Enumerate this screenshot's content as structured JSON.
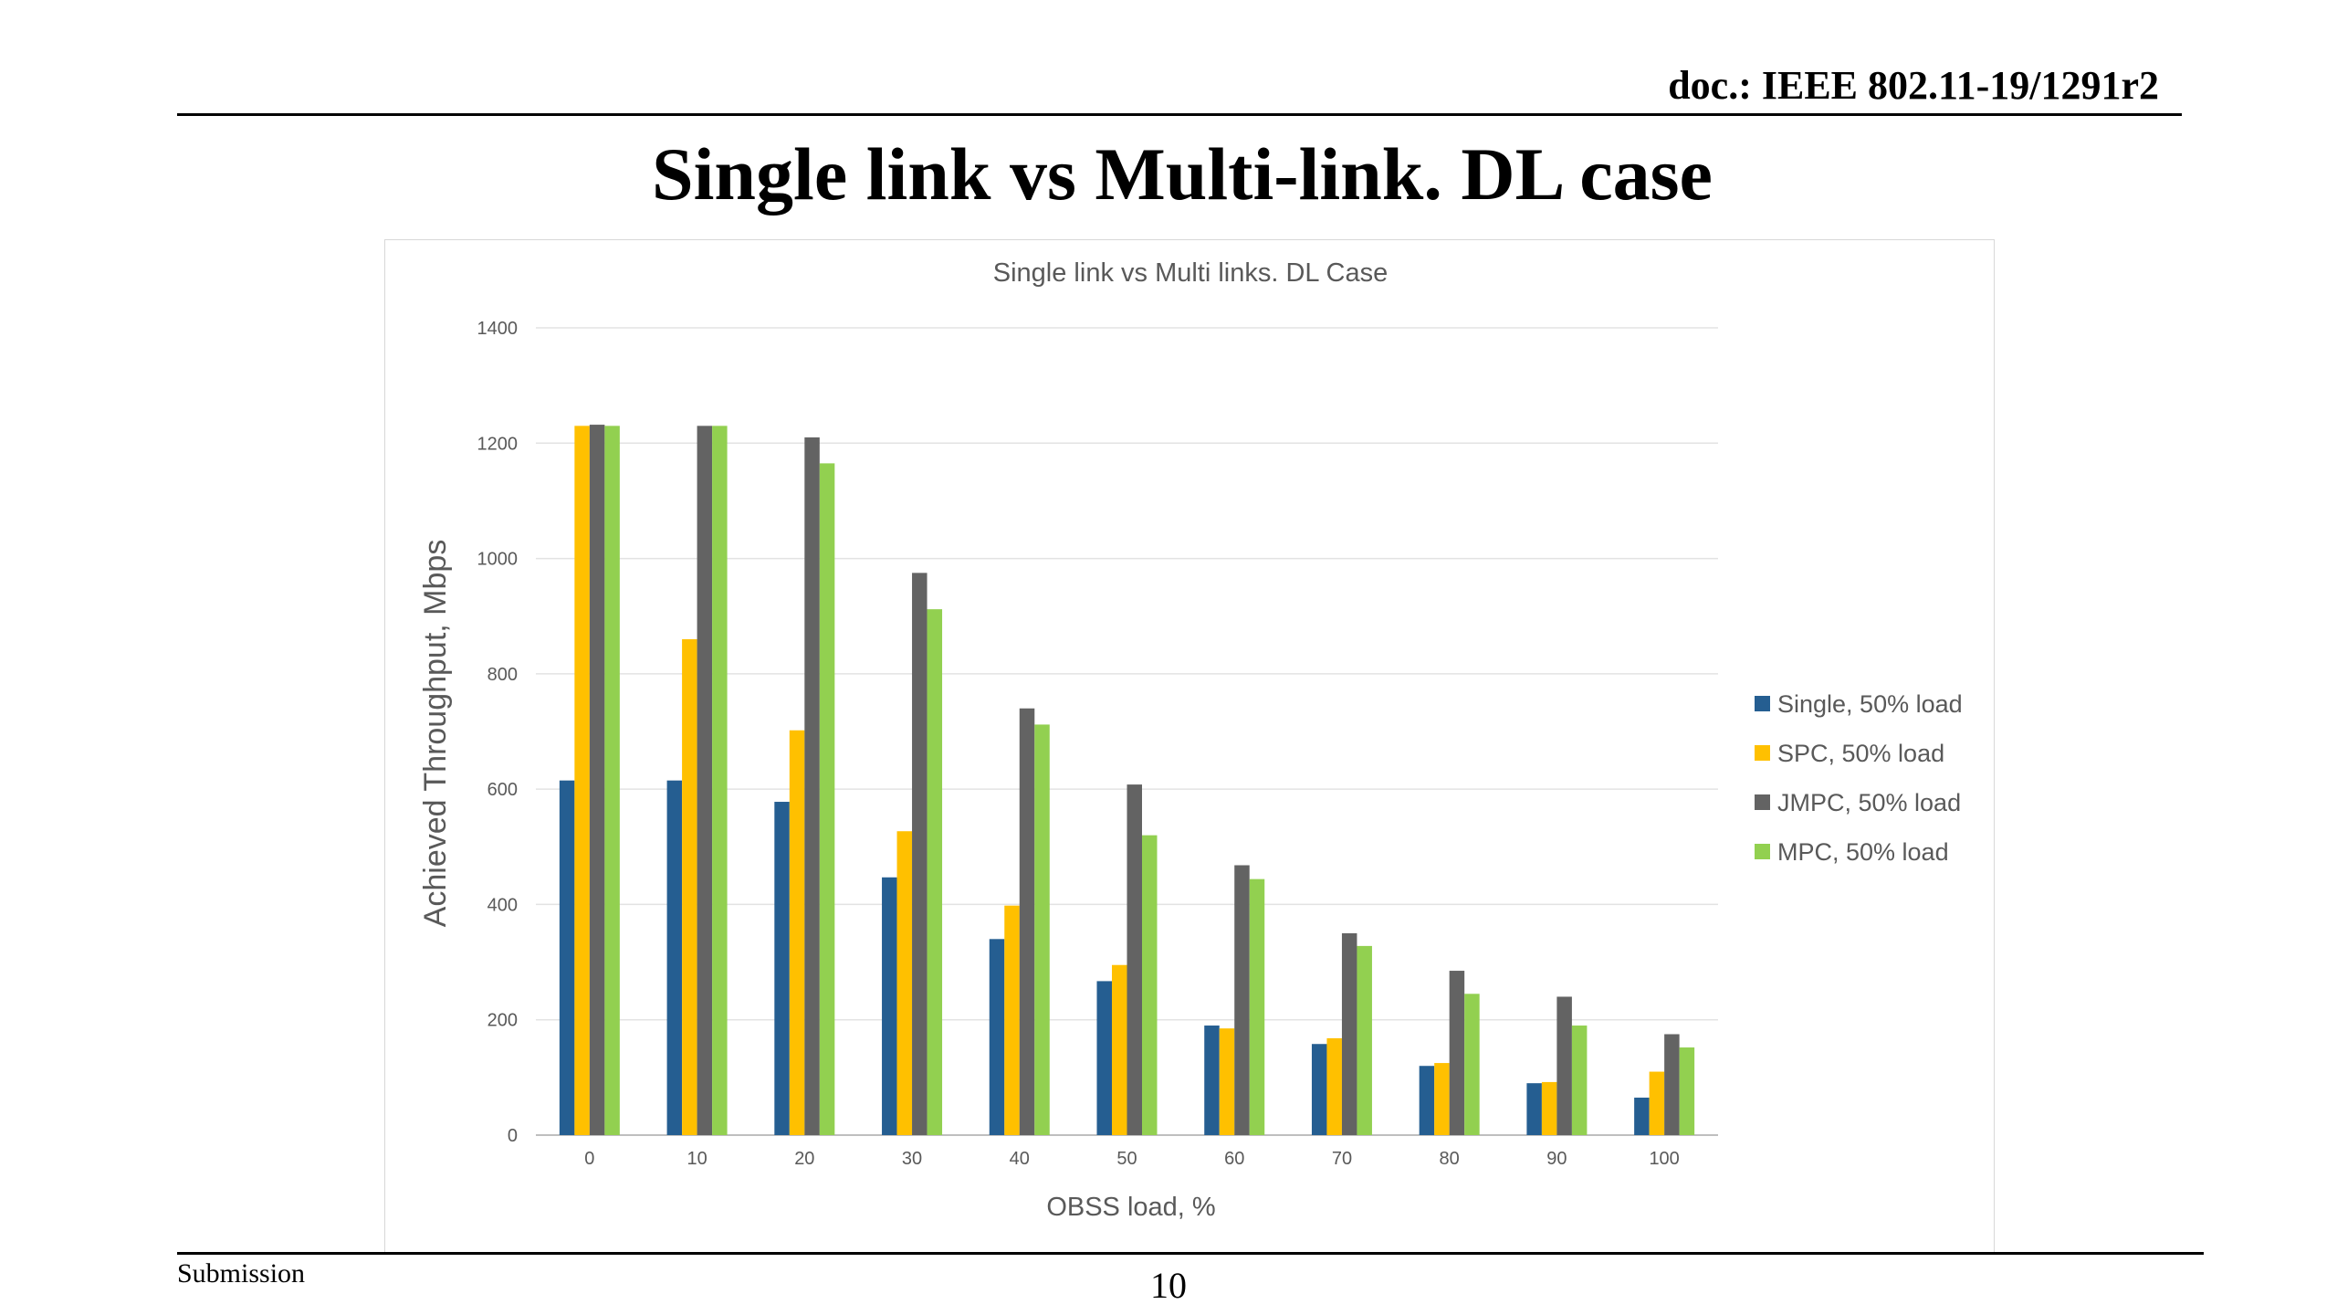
{
  "header": {
    "doc_ref": "doc.: IEEE 802.11-19/1291r2"
  },
  "slide": {
    "title": "Single link vs Multi-link. DL case"
  },
  "footer": {
    "left_label": "Submission",
    "page_number": "10"
  },
  "chart_data": {
    "type": "bar",
    "title": "Single link vs Multi links. DL Case",
    "xlabel": "OBSS load, %",
    "ylabel": "Achieved Throughput, Mbps",
    "ylim": [
      0,
      1400
    ],
    "yticks": [
      0,
      200,
      400,
      600,
      800,
      1000,
      1200,
      1400
    ],
    "categories": [
      "0",
      "10",
      "20",
      "30",
      "40",
      "50",
      "60",
      "70",
      "80",
      "90",
      "100"
    ],
    "grid": true,
    "legend_position": "right",
    "series": [
      {
        "name": "Single, 50% load",
        "color": "#255e91",
        "values": [
          615,
          615,
          578,
          447,
          340,
          267,
          190,
          158,
          120,
          90,
          65
        ]
      },
      {
        "name": "SPC, 50% load",
        "color": "#ffc000",
        "values": [
          1230,
          860,
          702,
          527,
          398,
          295,
          185,
          168,
          125,
          92,
          110
        ]
      },
      {
        "name": "JMPC, 50% load",
        "color": "#636363",
        "values": [
          1232,
          1230,
          1210,
          975,
          740,
          608,
          468,
          350,
          285,
          240,
          175
        ]
      },
      {
        "name": "MPC, 50% load",
        "color": "#92d050",
        "values": [
          1230,
          1230,
          1165,
          912,
          712,
          520,
          444,
          328,
          245,
          190,
          152
        ]
      }
    ]
  }
}
